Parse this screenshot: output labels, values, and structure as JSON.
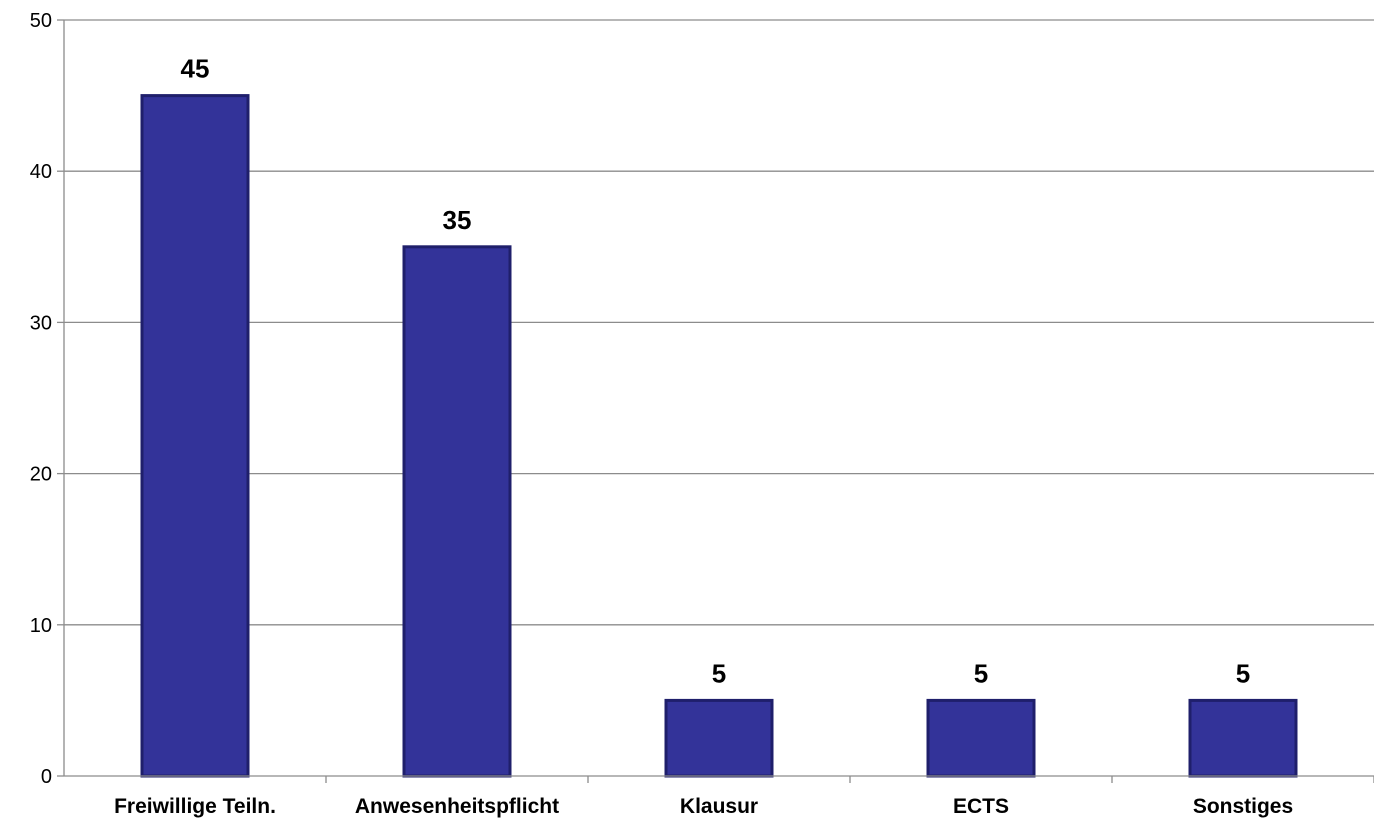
{
  "chart_data": {
    "type": "bar",
    "categories": [
      "Freiwillige Teiln.",
      "Anwesenheitspflicht",
      "Klausur",
      "ECTS",
      "Sonstiges"
    ],
    "values": [
      45,
      35,
      5,
      5,
      5
    ],
    "data_labels": [
      "45",
      "35",
      "5",
      "5",
      "5"
    ],
    "title": "",
    "xlabel": "",
    "ylabel": "",
    "ylim": [
      0,
      50
    ],
    "yticks": [
      0,
      10,
      20,
      30,
      40,
      50
    ],
    "ytick_labels": [
      "0",
      "10",
      "20",
      "30",
      "40",
      "50"
    ],
    "grid": true,
    "legend": "none",
    "colors": {
      "bar_fill": "#333399",
      "bar_stroke": "#1f1f6b",
      "gridline": "#8c8c8c",
      "axis": "#8c8c8c"
    }
  }
}
